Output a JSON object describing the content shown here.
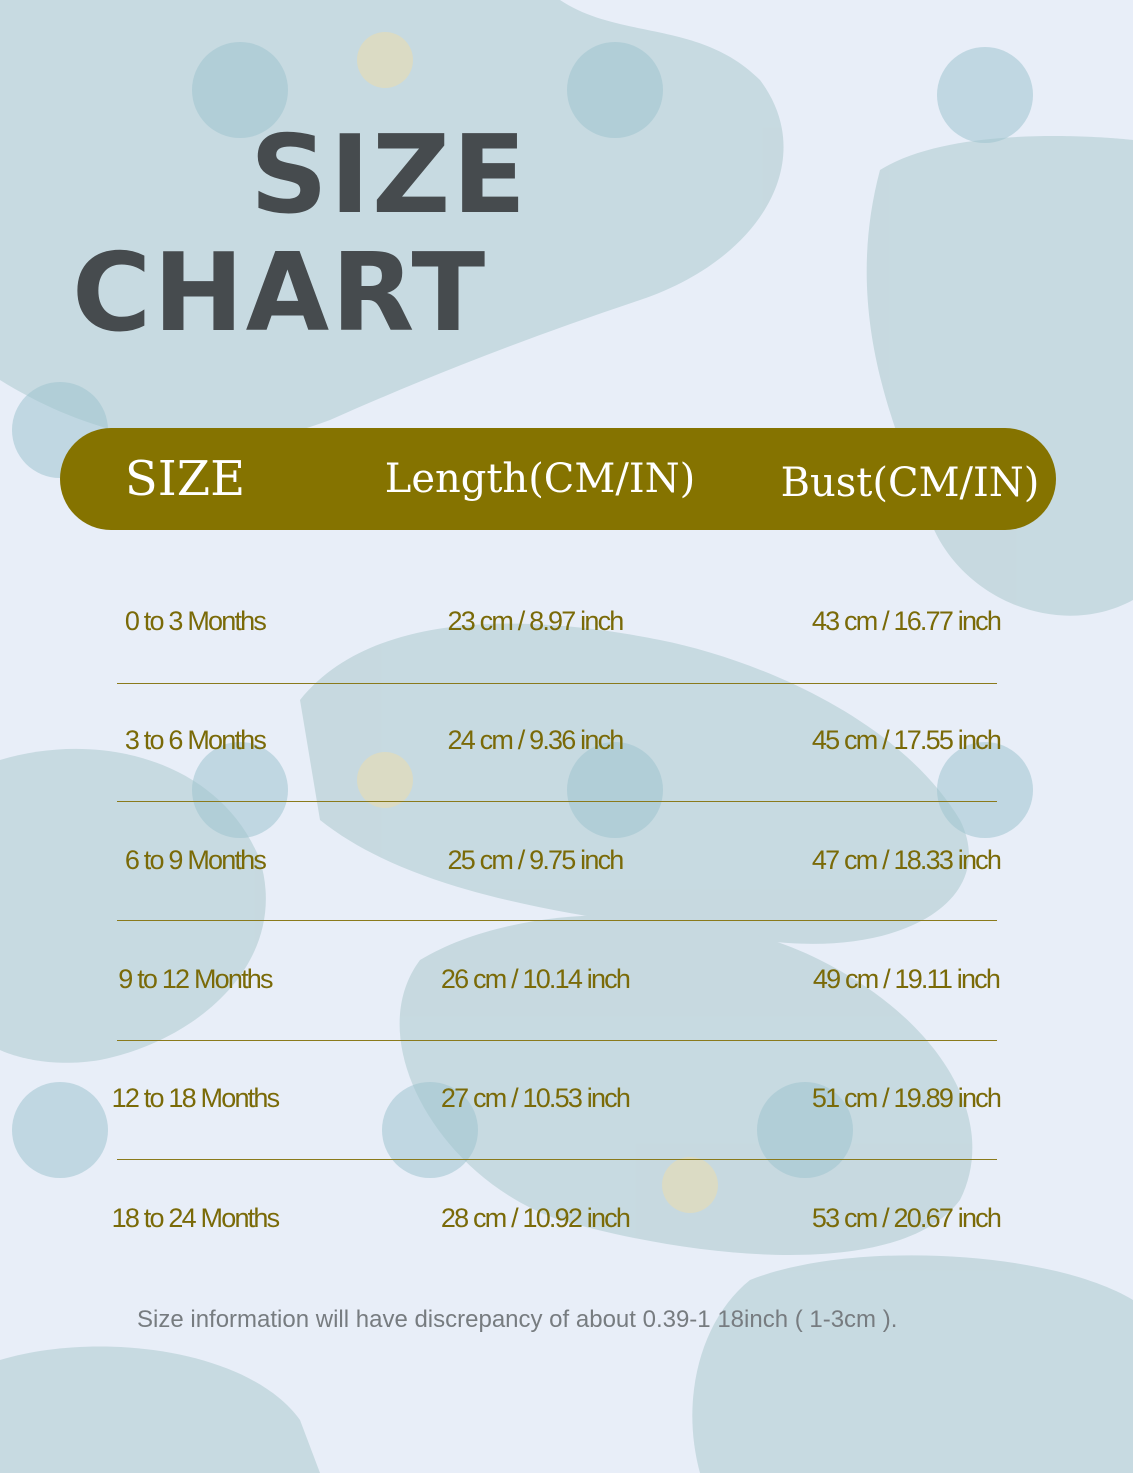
{
  "title": {
    "line1": "SIZE",
    "line2": "CHART"
  },
  "colors": {
    "header_bg": "#857300",
    "text": "#7a6a08",
    "title": "#464b4e",
    "background": "#e8eef8"
  },
  "table": {
    "headers": [
      "SIZE",
      "Length(CM/IN)",
      "Bust(CM/IN)"
    ],
    "rows": [
      [
        "0 to 3 Months",
        "23 cm / 8.97 inch",
        "43 cm / 16.77 inch"
      ],
      [
        "3 to 6 Months",
        "24 cm / 9.36 inch",
        "45 cm / 17.55 inch"
      ],
      [
        "6 to 9 Months",
        "25 cm / 9.75 inch",
        "47 cm / 18.33 inch"
      ],
      [
        "9 to 12 Months",
        "26 cm / 10.14 inch",
        "49 cm / 19.11 inch"
      ],
      [
        "12 to 18 Months",
        "27 cm / 10.53 inch",
        "51 cm / 19.89 inch"
      ],
      [
        "18 to 24 Months",
        "28 cm / 10.92 inch",
        "53 cm / 20.67 inch"
      ]
    ]
  },
  "note": "Size information will have discrepancy of about 0.39-1 18inch ( 1-3cm )."
}
